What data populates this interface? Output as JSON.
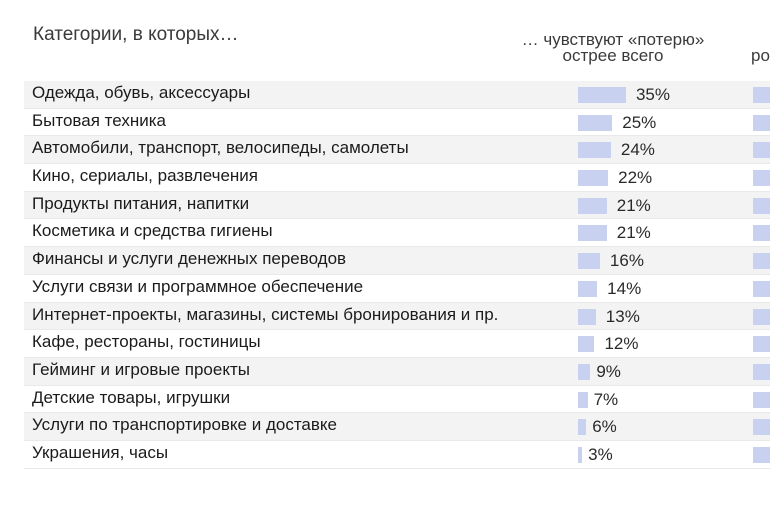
{
  "header": {
    "left": "Категории, в которых…",
    "col1_line1": "… чувствуют «потерю»",
    "col1_line2": "острее всего",
    "col2": "ро"
  },
  "colors": {
    "bar": "#c9d1f1",
    "shaded_row": "#f3f3f3"
  },
  "chart_data": {
    "type": "bar",
    "orientation": "horizontal",
    "title": "",
    "categories": [
      "Одежда, обувь, аксессуары",
      "Бытовая техника",
      "Автомобили, транспорт, велосипеды, самолеты",
      "Кино, сериалы, развлечения",
      "Продукты питания, напитки",
      "Косметика и средства гигиены",
      "Финансы и услуги денежных переводов",
      "Услуги связи и программное обеспечение",
      "Интернет-проекты, магазины, системы бронирования и пр.",
      "Кафе, рестораны, гостиницы",
      "Гейминг и игровые проекты",
      "Детские товары, игрушки",
      "Услуги по транспортировке и доставке",
      "Украшения, часы"
    ],
    "series": [
      {
        "values": [
          35,
          25,
          24,
          22,
          21,
          21,
          16,
          14,
          13,
          12,
          9,
          7,
          6,
          3
        ]
      }
    ],
    "value_labels": [
      "35%",
      "25%",
      "24%",
      "22%",
      "21%",
      "21%",
      "16%",
      "14%",
      "13%",
      "12%",
      "9%",
      "7%",
      "6%",
      "3%"
    ],
    "grid": false
  }
}
